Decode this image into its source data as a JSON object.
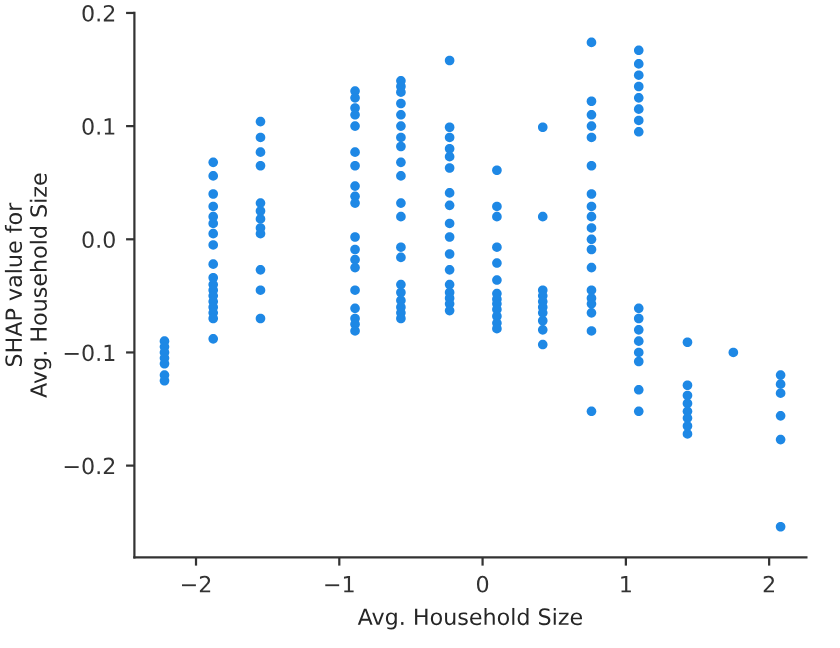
{
  "chart_data": {
    "type": "scatter",
    "xlabel": "Avg. Household Size",
    "ylabel": "SHAP value for\nAvg. Household Size",
    "marker": "circle",
    "grid": false,
    "xlim": [
      -2.43,
      2.26
    ],
    "ylim": [
      -0.281,
      0.2
    ],
    "xticks": [
      {
        "value": -2,
        "label": "−2"
      },
      {
        "value": -1,
        "label": "−1"
      },
      {
        "value": 0,
        "label": "0"
      },
      {
        "value": 1,
        "label": "1"
      },
      {
        "value": 2,
        "label": "2"
      }
    ],
    "yticks": [
      {
        "value": -0.2,
        "label": "−0.2"
      },
      {
        "value": -0.1,
        "label": "−0.1"
      },
      {
        "value": 0,
        "label": "0.0"
      },
      {
        "value": 0.1,
        "label": "0.1"
      },
      {
        "value": 0.2,
        "label": "0.2"
      }
    ],
    "series": [
      {
        "color": "#1e88e5",
        "x": [
          -2.22,
          -2.22,
          -2.22,
          -2.22,
          -2.22,
          -2.22,
          -2.22,
          -1.88,
          -1.88,
          -1.88,
          -1.88,
          -1.88,
          -1.88,
          -1.88,
          -1.88,
          -1.88,
          -1.88,
          -1.88,
          -1.88,
          -1.88,
          -1.88,
          -1.88,
          -1.88,
          -1.88,
          -1.88,
          -1.55,
          -1.55,
          -1.55,
          -1.55,
          -1.55,
          -1.55,
          -1.55,
          -1.55,
          -1.55,
          -1.55,
          -1.55,
          -1.55,
          -0.89,
          -0.89,
          -0.89,
          -0.89,
          -0.89,
          -0.89,
          -0.89,
          -0.89,
          -0.89,
          -0.89,
          -0.89,
          -0.89,
          -0.89,
          -0.89,
          -0.89,
          -0.89,
          -0.89,
          -0.89,
          -0.89,
          -0.57,
          -0.57,
          -0.57,
          -0.57,
          -0.57,
          -0.57,
          -0.57,
          -0.57,
          -0.57,
          -0.57,
          -0.57,
          -0.57,
          -0.57,
          -0.57,
          -0.57,
          -0.57,
          -0.57,
          -0.57,
          -0.57,
          -0.57,
          -0.23,
          -0.23,
          -0.23,
          -0.23,
          -0.23,
          -0.23,
          -0.23,
          -0.23,
          -0.23,
          -0.23,
          -0.23,
          -0.23,
          -0.23,
          -0.23,
          -0.23,
          -0.23,
          -0.23,
          0.1,
          0.1,
          0.1,
          0.1,
          0.1,
          0.1,
          0.1,
          0.1,
          0.1,
          0.1,
          0.1,
          0.1,
          0.1,
          0.42,
          0.42,
          0.42,
          0.42,
          0.42,
          0.42,
          0.42,
          0.42,
          0.42,
          0.42,
          0.76,
          0.76,
          0.76,
          0.76,
          0.76,
          0.76,
          0.76,
          0.76,
          0.76,
          0.76,
          0.76,
          0.76,
          0.76,
          0.76,
          0.76,
          0.76,
          0.76,
          0.76,
          0.76,
          1.09,
          1.09,
          1.09,
          1.09,
          1.09,
          1.09,
          1.09,
          1.09,
          1.09,
          1.09,
          1.09,
          1.09,
          1.09,
          1.09,
          1.09,
          1.09,
          1.43,
          1.43,
          1.43,
          1.43,
          1.43,
          1.43,
          1.43,
          1.43,
          1.75,
          2.08,
          2.08,
          2.08,
          2.08,
          2.08,
          2.08
        ],
        "values": [
          -0.09,
          -0.095,
          -0.1,
          -0.105,
          -0.11,
          -0.12,
          -0.125,
          0.068,
          0.056,
          0.04,
          0.029,
          0.02,
          0.014,
          0.005,
          -0.005,
          -0.022,
          -0.034,
          -0.04,
          -0.045,
          -0.05,
          -0.055,
          -0.06,
          -0.065,
          -0.07,
          -0.088,
          0.104,
          0.09,
          0.077,
          0.065,
          0.032,
          0.025,
          0.018,
          0.01,
          0.005,
          -0.027,
          -0.045,
          -0.07,
          0.131,
          0.116,
          0.1,
          0.077,
          0.065,
          0.047,
          0.038,
          0.032,
          0.002,
          -0.009,
          -0.018,
          -0.025,
          -0.045,
          -0.061,
          -0.07,
          -0.075,
          -0.081,
          0.125,
          0.11,
          0.14,
          0.13,
          0.12,
          0.11,
          0.1,
          0.09,
          0.082,
          0.068,
          0.056,
          0.032,
          0.02,
          -0.007,
          -0.016,
          -0.04,
          -0.047,
          -0.054,
          -0.06,
          -0.065,
          -0.07,
          0.135,
          0.158,
          0.099,
          0.09,
          0.08,
          0.073,
          0.063,
          0.041,
          0.03,
          0.014,
          0.002,
          -0.013,
          -0.027,
          -0.04,
          -0.047,
          -0.052,
          -0.057,
          -0.063,
          0.061,
          0.029,
          0.02,
          -0.007,
          -0.021,
          -0.036,
          -0.048,
          -0.053,
          -0.057,
          -0.062,
          -0.068,
          -0.074,
          -0.079,
          0.099,
          0.02,
          -0.045,
          -0.05,
          -0.055,
          -0.06,
          -0.065,
          -0.072,
          -0.08,
          -0.093,
          0.174,
          0.122,
          0.11,
          0.1,
          0.09,
          0.065,
          0.04,
          0.029,
          0.02,
          0.01,
          0.0,
          -0.009,
          -0.025,
          -0.045,
          -0.052,
          -0.057,
          -0.065,
          -0.081,
          -0.152,
          0.167,
          0.155,
          0.145,
          0.135,
          0.125,
          0.115,
          0.105,
          0.095,
          -0.061,
          -0.07,
          -0.08,
          -0.09,
          -0.1,
          -0.108,
          -0.133,
          -0.152,
          -0.091,
          -0.129,
          -0.138,
          -0.145,
          -0.152,
          -0.158,
          -0.165,
          -0.172,
          -0.1,
          -0.12,
          -0.128,
          -0.136,
          -0.156,
          -0.177,
          -0.254
        ]
      }
    ]
  }
}
